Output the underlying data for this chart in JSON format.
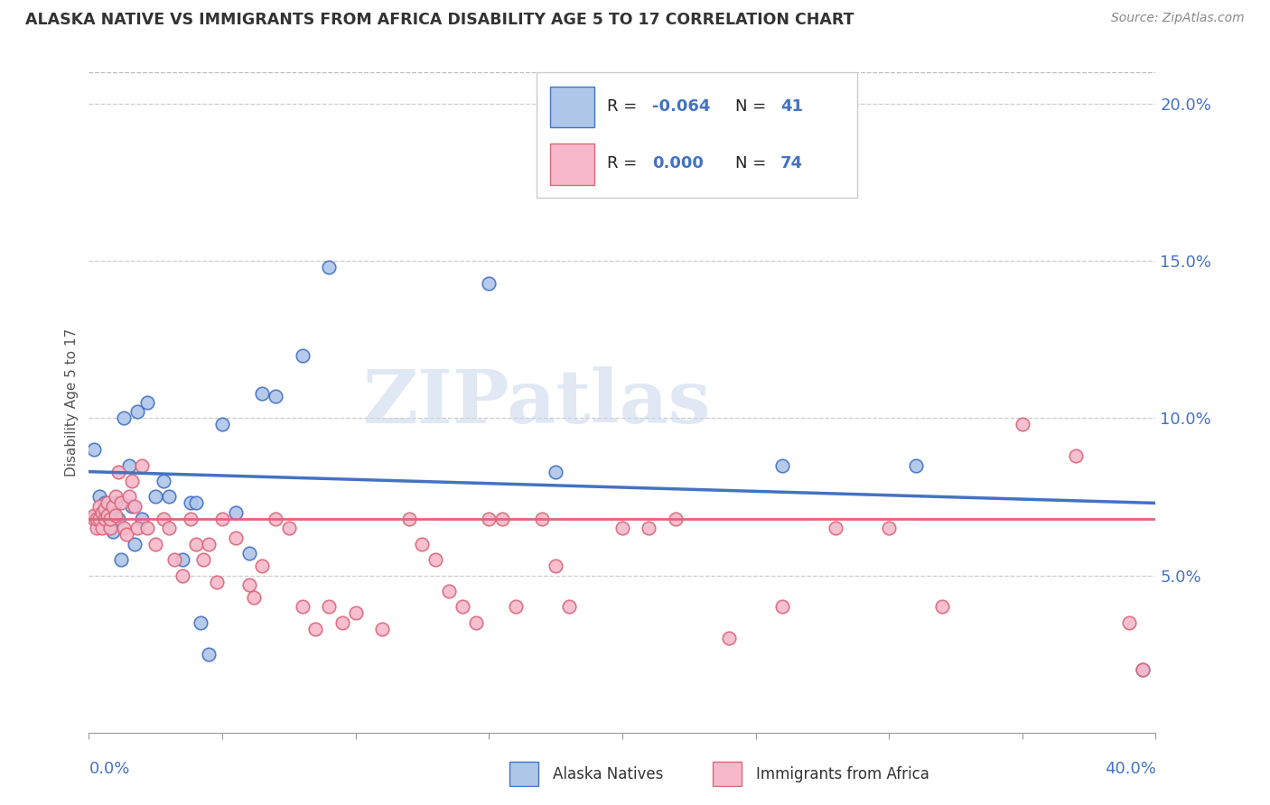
{
  "title": "ALASKA NATIVE VS IMMIGRANTS FROM AFRICA DISABILITY AGE 5 TO 17 CORRELATION CHART",
  "source": "Source: ZipAtlas.com",
  "ylabel": "Disability Age 5 to 17",
  "xlim": [
    0.0,
    0.4
  ],
  "ylim": [
    0.0,
    0.21
  ],
  "ytick_vals": [
    0.05,
    0.1,
    0.15,
    0.2
  ],
  "ytick_labels": [
    "5.0%",
    "10.0%",
    "15.0%",
    "20.0%"
  ],
  "blue_R": -0.064,
  "blue_N": 41,
  "pink_R": 0.0,
  "pink_N": 74,
  "blue_fill": "#aec6e8",
  "pink_fill": "#f7b8cb",
  "blue_edge": "#4472c4",
  "pink_edge": "#d9687a",
  "blue_line": "#4472c4",
  "pink_line": "#d9687a",
  "legend_label_blue": "Alaska Natives",
  "legend_label_pink": "Immigrants from Africa",
  "watermark": "ZIPatlas",
  "blue_line_y0": 0.083,
  "blue_line_y1": 0.073,
  "pink_line_y": 0.068,
  "blue_x": [
    0.002,
    0.003,
    0.004,
    0.005,
    0.006,
    0.006,
    0.007,
    0.007,
    0.008,
    0.009,
    0.009,
    0.01,
    0.011,
    0.012,
    0.013,
    0.015,
    0.016,
    0.017,
    0.018,
    0.02,
    0.022,
    0.025,
    0.028,
    0.03,
    0.035,
    0.038,
    0.04,
    0.042,
    0.045,
    0.05,
    0.055,
    0.06,
    0.065,
    0.07,
    0.08,
    0.09,
    0.15,
    0.175,
    0.26,
    0.31,
    0.395
  ],
  "blue_y": [
    0.09,
    0.069,
    0.075,
    0.068,
    0.067,
    0.073,
    0.07,
    0.068,
    0.069,
    0.071,
    0.064,
    0.073,
    0.068,
    0.055,
    0.1,
    0.085,
    0.072,
    0.06,
    0.102,
    0.068,
    0.105,
    0.075,
    0.08,
    0.075,
    0.055,
    0.073,
    0.073,
    0.035,
    0.025,
    0.098,
    0.07,
    0.057,
    0.108,
    0.107,
    0.12,
    0.148,
    0.143,
    0.083,
    0.085,
    0.085,
    0.02
  ],
  "pink_x": [
    0.002,
    0.002,
    0.003,
    0.003,
    0.004,
    0.004,
    0.005,
    0.005,
    0.006,
    0.006,
    0.007,
    0.007,
    0.008,
    0.008,
    0.009,
    0.01,
    0.01,
    0.011,
    0.012,
    0.013,
    0.014,
    0.015,
    0.016,
    0.017,
    0.018,
    0.02,
    0.022,
    0.025,
    0.028,
    0.03,
    0.032,
    0.035,
    0.038,
    0.04,
    0.043,
    0.045,
    0.048,
    0.05,
    0.055,
    0.06,
    0.062,
    0.065,
    0.07,
    0.075,
    0.08,
    0.085,
    0.09,
    0.095,
    0.1,
    0.11,
    0.12,
    0.125,
    0.13,
    0.135,
    0.14,
    0.145,
    0.15,
    0.155,
    0.16,
    0.17,
    0.175,
    0.18,
    0.2,
    0.21,
    0.22,
    0.24,
    0.26,
    0.28,
    0.3,
    0.32,
    0.35,
    0.37,
    0.39,
    0.395
  ],
  "pink_y": [
    0.068,
    0.069,
    0.065,
    0.068,
    0.068,
    0.072,
    0.07,
    0.065,
    0.068,
    0.071,
    0.069,
    0.073,
    0.065,
    0.068,
    0.072,
    0.075,
    0.069,
    0.083,
    0.073,
    0.065,
    0.063,
    0.075,
    0.08,
    0.072,
    0.065,
    0.085,
    0.065,
    0.06,
    0.068,
    0.065,
    0.055,
    0.05,
    0.068,
    0.06,
    0.055,
    0.06,
    0.048,
    0.068,
    0.062,
    0.047,
    0.043,
    0.053,
    0.068,
    0.065,
    0.04,
    0.033,
    0.04,
    0.035,
    0.038,
    0.033,
    0.068,
    0.06,
    0.055,
    0.045,
    0.04,
    0.035,
    0.068,
    0.068,
    0.04,
    0.068,
    0.053,
    0.04,
    0.065,
    0.065,
    0.068,
    0.03,
    0.04,
    0.065,
    0.065,
    0.04,
    0.098,
    0.088,
    0.035,
    0.02
  ]
}
